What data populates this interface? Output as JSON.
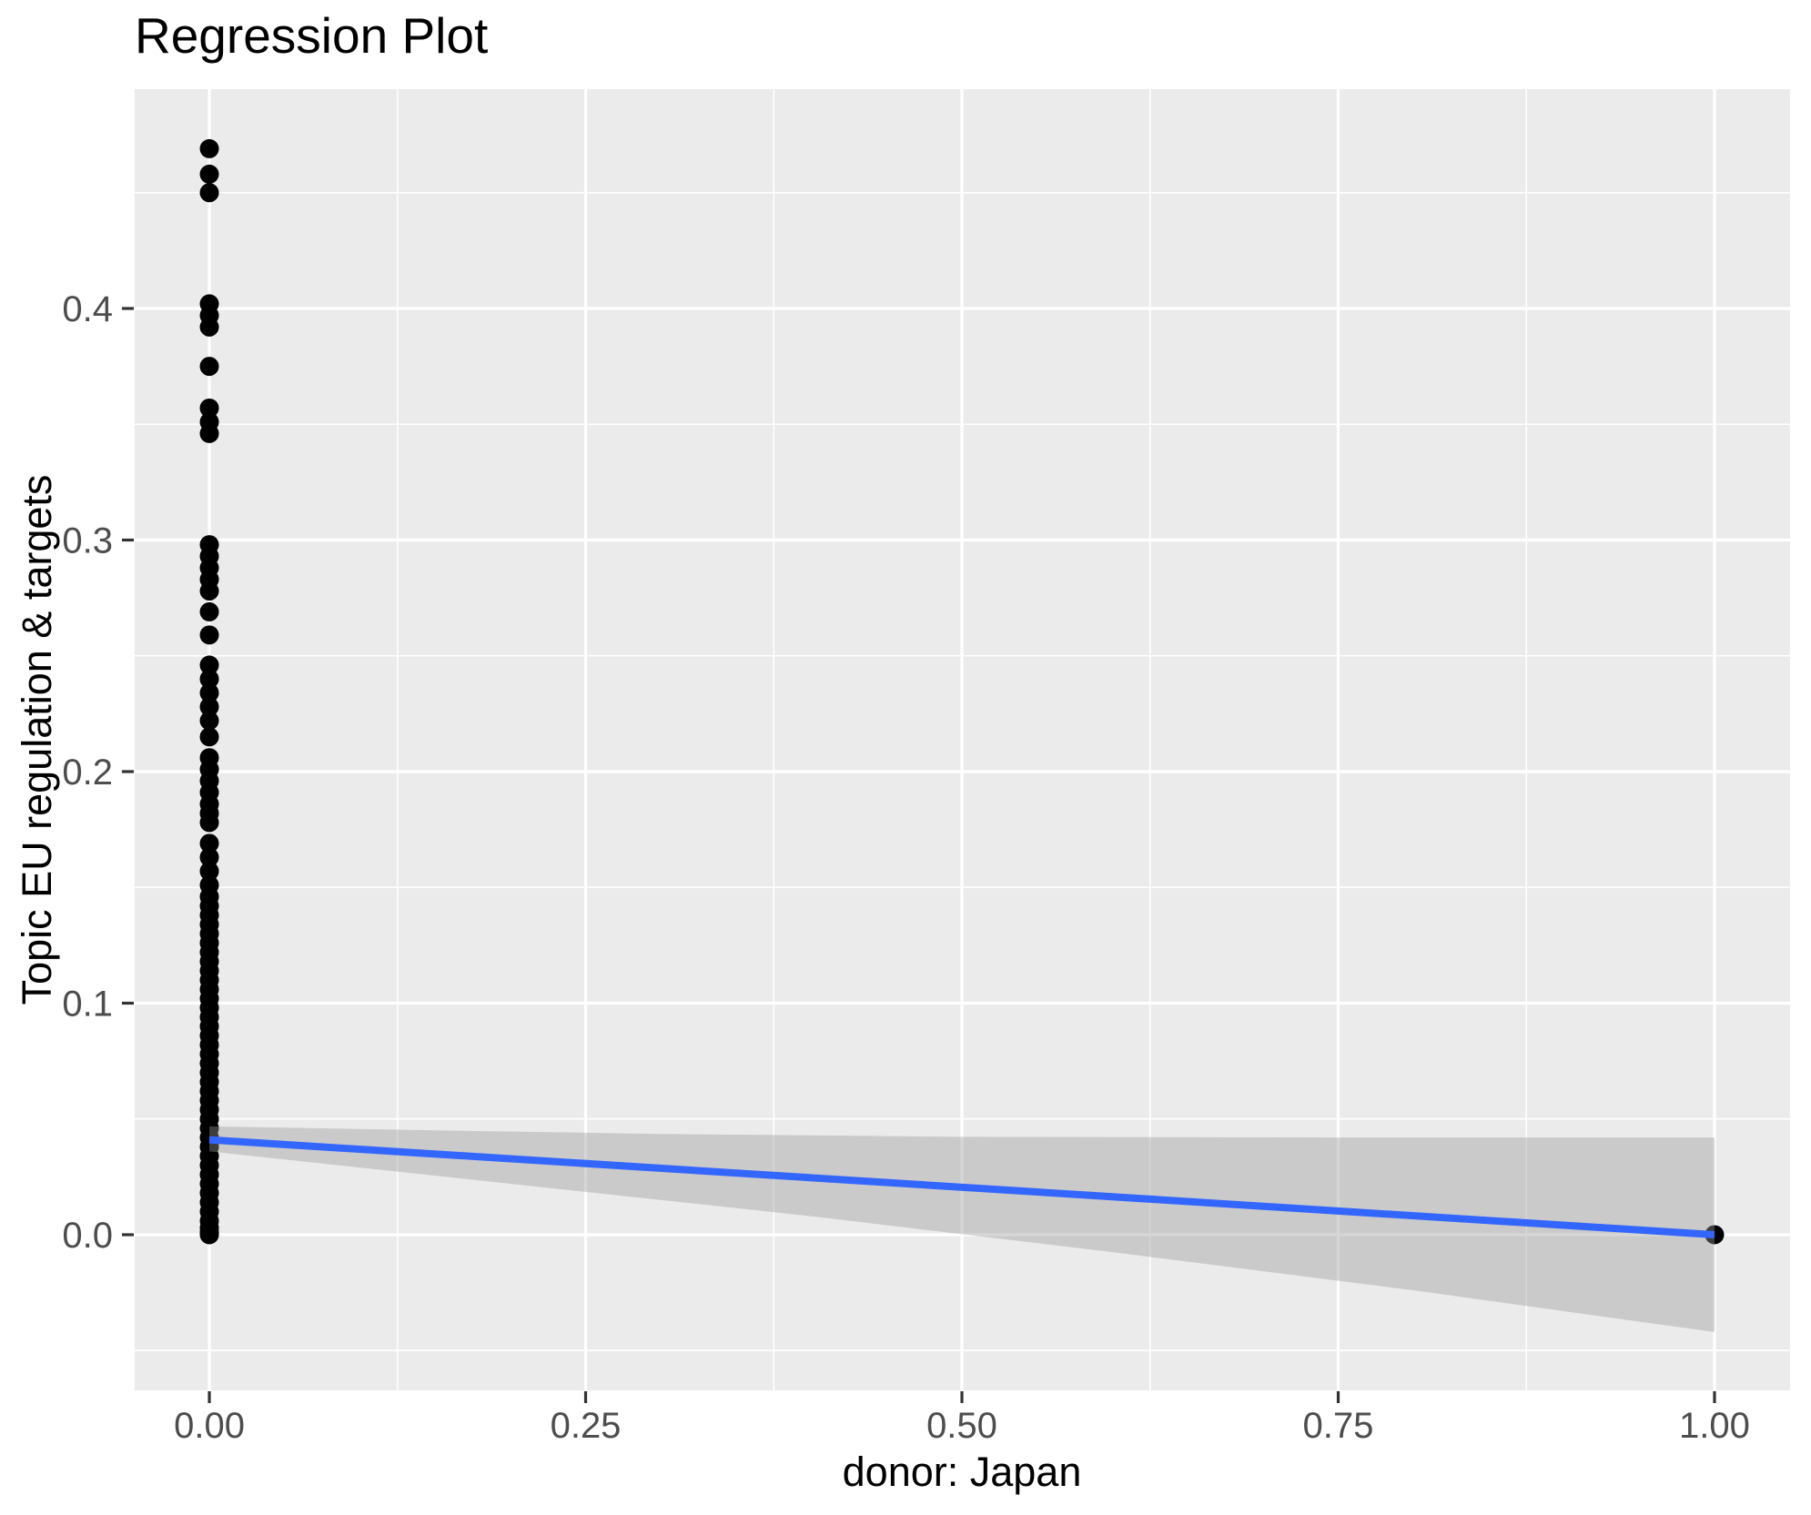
{
  "chart_data": {
    "type": "scatter",
    "title": "Regression Plot",
    "xlabel": "donor: Japan",
    "ylabel": "Topic EU regulation & targets",
    "xlim": [
      -0.0496,
      1.0502
    ],
    "ylim": [
      -0.0672,
      0.4947
    ],
    "x_major_ticks": [
      0,
      0.25,
      0.5,
      0.75,
      1
    ],
    "x_tick_labels": [
      "0.00",
      "0.25",
      "0.50",
      "0.75",
      "1.00"
    ],
    "x_minor_ticks": [
      0.125,
      0.375,
      0.625,
      0.875
    ],
    "y_major_ticks": [
      0,
      0.1,
      0.2,
      0.3,
      0.4
    ],
    "y_tick_labels": [
      "0.0",
      "0.1",
      "0.2",
      "0.3",
      "0.4"
    ],
    "y_minor_ticks": [
      -0.05,
      0.05,
      0.15,
      0.25,
      0.35,
      0.45
    ],
    "legend": "none",
    "grid": "major-and-minor",
    "colors": {
      "panel_bg": "#EBEBEB",
      "grid": "#FFFFFF",
      "point": "#000000",
      "regression_line": "#3366FF",
      "band_fill": "#999999",
      "band_opacity": 0.4,
      "tick_label": "#4D4D4D",
      "tick_mark": "#333333"
    },
    "series": [
      {
        "name": "observations-donor-0",
        "x": 0,
        "y": [
          0.469,
          0.458,
          0.45,
          0.402,
          0.397,
          0.392,
          0.375,
          0.357,
          0.351,
          0.346,
          0.298,
          0.293,
          0.288,
          0.283,
          0.278,
          0.269,
          0.259,
          0.246,
          0.24,
          0.234,
          0.228,
          0.222,
          0.215,
          0.206,
          0.201,
          0.196,
          0.191,
          0.186,
          0.182,
          0.178,
          0.169,
          0.163,
          0.157,
          0.151,
          0.146,
          0.142,
          0.138,
          0.134,
          0.13,
          0.126,
          0.122,
          0.118,
          0.114,
          0.11,
          0.106,
          0.102,
          0.098,
          0.094,
          0.09,
          0.086,
          0.082,
          0.078,
          0.074,
          0.07,
          0.066,
          0.062,
          0.058,
          0.054,
          0.05,
          0.046,
          0.042,
          0.038,
          0.034,
          0.03,
          0.026,
          0.022,
          0.018,
          0.014,
          0.01,
          0.006,
          0.003,
          0.001,
          0.0
        ]
      },
      {
        "name": "observations-donor-1",
        "x": 1,
        "y": [
          0.0
        ]
      }
    ],
    "regression_line": {
      "x1": 0,
      "y1": 0.041,
      "x2": 1,
      "y2": 0.0
    },
    "confidence_band": {
      "upper": [
        [
          0,
          0.0468
        ],
        [
          0.15,
          0.0451
        ],
        [
          0.3,
          0.0435
        ],
        [
          0.5,
          0.0423
        ],
        [
          0.75,
          0.042
        ],
        [
          1,
          0.042
        ]
      ],
      "lower": [
        [
          0,
          0.036
        ],
        [
          0.2,
          0.022
        ],
        [
          0.4,
          0.008
        ],
        [
          0.6,
          -0.0075
        ],
        [
          0.8,
          -0.024
        ],
        [
          1,
          -0.042
        ]
      ]
    }
  }
}
